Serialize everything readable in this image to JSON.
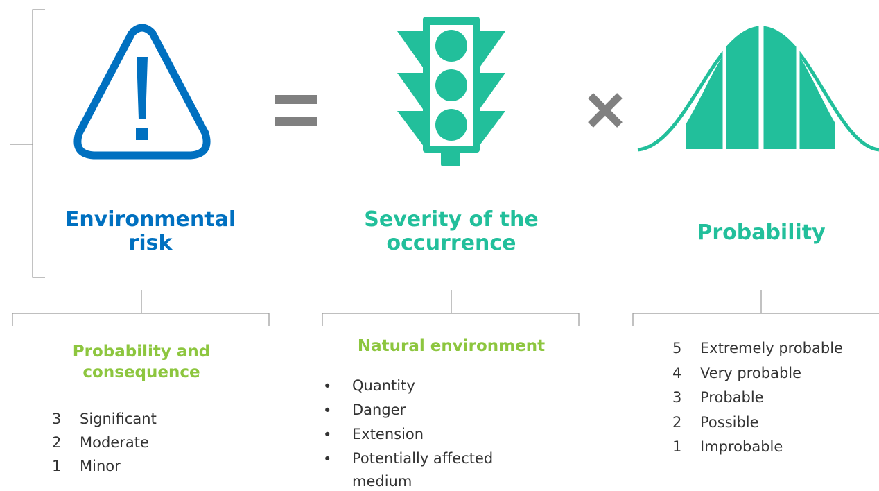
{
  "header": {
    "risk": "Environmental risk",
    "severity": "Severity of the occurrence",
    "probability": "Probability"
  },
  "panels": [
    {
      "title": "Probability and consequence",
      "items": [
        {
          "level": 3,
          "label": "Significant"
        },
        {
          "level": 2,
          "label": "Moderate"
        },
        {
          "level": 1,
          "label": "Minor"
        }
      ]
    },
    {
      "title": "Natural environment",
      "items": [
        "Quantity",
        "Danger",
        "Extension",
        "Potentially affected medium"
      ]
    },
    {
      "items": [
        {
          "level": 5,
          "label": "Extremely probable"
        },
        {
          "level": 4,
          "label": "Very probable"
        },
        {
          "level": 3,
          "label": "Probable"
        },
        {
          "level": 2,
          "label": "Possible"
        },
        {
          "level": 1,
          "label": "Improbable"
        }
      ]
    }
  ]
}
